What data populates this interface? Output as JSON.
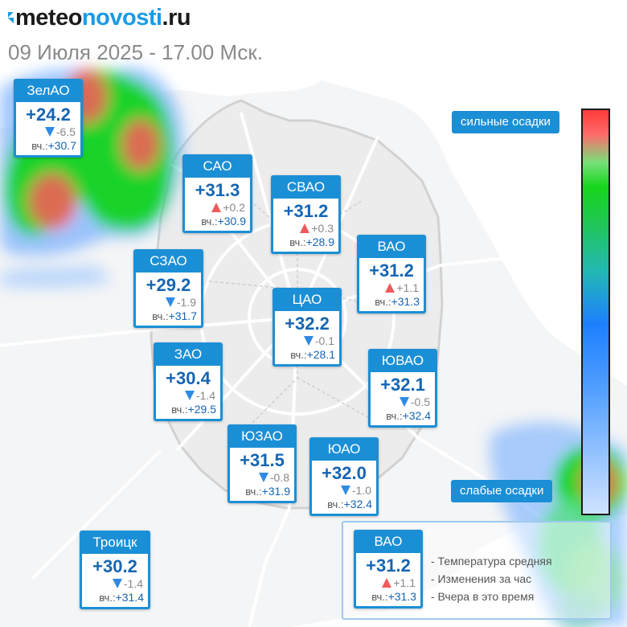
{
  "brand": {
    "prefix": "meteo",
    "accent": "novosti",
    "suffix": ".ru"
  },
  "datetime": "09 Июля 2025 - 17.00 Мск.",
  "yesterday_prefix": "вч.:",
  "districts": [
    {
      "id": "zelao",
      "name": "ЗелАО",
      "temp": "+24.2",
      "trend": "down",
      "change": "-6.5",
      "yesterday": "+30.7"
    },
    {
      "id": "sao",
      "name": "САО",
      "temp": "+31.3",
      "trend": "up",
      "change": "+0.2",
      "yesterday": "+30.9"
    },
    {
      "id": "svao",
      "name": "СВАО",
      "temp": "+31.2",
      "trend": "up",
      "change": "+0.3",
      "yesterday": "+28.9"
    },
    {
      "id": "vao",
      "name": "ВАО",
      "temp": "+31.2",
      "trend": "up",
      "change": "+1.1",
      "yesterday": "+31.3"
    },
    {
      "id": "szao",
      "name": "СЗАО",
      "temp": "+29.2",
      "trend": "down",
      "change": "-1.9",
      "yesterday": "+31.7"
    },
    {
      "id": "cao",
      "name": "ЦАО",
      "temp": "+32.2",
      "trend": "down",
      "change": "-0.1",
      "yesterday": "+28.1"
    },
    {
      "id": "zao",
      "name": "ЗАО",
      "temp": "+30.4",
      "trend": "down",
      "change": "-1.4",
      "yesterday": "+29.5"
    },
    {
      "id": "yuvao",
      "name": "ЮВАО",
      "temp": "+32.1",
      "trend": "down",
      "change": "-0.5",
      "yesterday": "+32.4"
    },
    {
      "id": "yuzao",
      "name": "ЮЗАО",
      "temp": "+31.5",
      "trend": "down",
      "change": "-0.8",
      "yesterday": "+31.9"
    },
    {
      "id": "yuao",
      "name": "ЮАО",
      "temp": "+32.0",
      "trend": "down",
      "change": "-1.0",
      "yesterday": "+32.4"
    },
    {
      "id": "troitsk",
      "name": "Троицк",
      "temp": "+30.2",
      "trend": "down",
      "change": "-1.4",
      "yesterday": "+31.4"
    }
  ],
  "precip_scale": {
    "top_label": "сильные осадки",
    "bottom_label": "слабые осадки"
  },
  "legend": {
    "sample": {
      "name": "ВАО",
      "temp": "+31.2",
      "trend": "up",
      "change": "+1.1",
      "yesterday": "+31.3"
    },
    "items": [
      "- Температура средняя",
      "- Изменения за час",
      "- Вчера в это время"
    ]
  },
  "colors": {
    "accent": "#1b8fd6",
    "temp_text": "#1565b3",
    "trend_up": "#ef5b5b",
    "trend_down": "#2f8ae5"
  }
}
